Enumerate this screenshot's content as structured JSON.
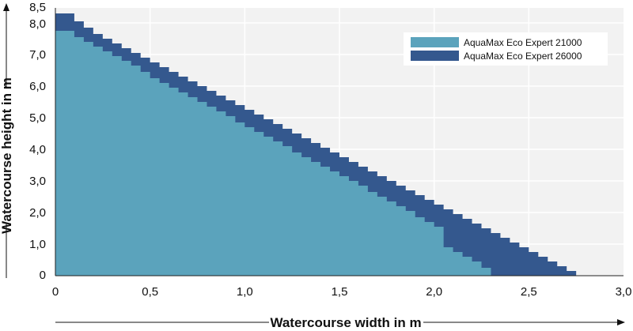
{
  "chart_data": {
    "type": "area",
    "title": "",
    "xlabel": "Watercourse width in m",
    "ylabel": "Watercourse height in m",
    "xlim": [
      0,
      3.0
    ],
    "ylim": [
      0,
      8.5
    ],
    "x_ticks": [
      "0",
      "0,5",
      "1,0",
      "1,5",
      "2,0",
      "2,5",
      "3,0"
    ],
    "y_ticks": [
      "0",
      "1,0",
      "2,0",
      "3,0",
      "4,0",
      "5,0",
      "6,0",
      "7,0",
      "8,0",
      "8,5"
    ],
    "grid": true,
    "legend_position": "top-right",
    "series": [
      {
        "name": "AquaMax Eco Expert 21000",
        "color": "#5ba3bc",
        "step": true,
        "points": [
          [
            0.0,
            7.75
          ],
          [
            0.1,
            7.55
          ],
          [
            0.15,
            7.4
          ],
          [
            0.2,
            7.25
          ],
          [
            0.25,
            7.1
          ],
          [
            0.3,
            6.95
          ],
          [
            0.35,
            6.8
          ],
          [
            0.4,
            6.65
          ],
          [
            0.45,
            6.45
          ],
          [
            0.5,
            6.25
          ],
          [
            0.55,
            6.1
          ],
          [
            0.6,
            5.95
          ],
          [
            0.65,
            5.8
          ],
          [
            0.7,
            5.65
          ],
          [
            0.75,
            5.5
          ],
          [
            0.8,
            5.35
          ],
          [
            0.85,
            5.2
          ],
          [
            0.9,
            5.05
          ],
          [
            0.95,
            4.85
          ],
          [
            1.0,
            4.7
          ],
          [
            1.05,
            4.55
          ],
          [
            1.1,
            4.4
          ],
          [
            1.15,
            4.25
          ],
          [
            1.2,
            4.1
          ],
          [
            1.25,
            3.9
          ],
          [
            1.3,
            3.75
          ],
          [
            1.35,
            3.6
          ],
          [
            1.4,
            3.45
          ],
          [
            1.45,
            3.3
          ],
          [
            1.5,
            3.15
          ],
          [
            1.55,
            3.0
          ],
          [
            1.6,
            2.85
          ],
          [
            1.65,
            2.65
          ],
          [
            1.7,
            2.5
          ],
          [
            1.75,
            2.35
          ],
          [
            1.8,
            2.2
          ],
          [
            1.85,
            2.05
          ],
          [
            1.9,
            1.85
          ],
          [
            1.95,
            1.7
          ],
          [
            2.0,
            1.55
          ],
          [
            2.05,
            0.9
          ],
          [
            2.1,
            0.75
          ],
          [
            2.15,
            0.6
          ],
          [
            2.2,
            0.45
          ],
          [
            2.25,
            0.25
          ],
          [
            2.3,
            0.0
          ]
        ]
      },
      {
        "name": "AquaMax Eco Expert 26000",
        "color": "#34588e",
        "step": true,
        "points": [
          [
            0.0,
            8.3
          ],
          [
            0.1,
            8.05
          ],
          [
            0.15,
            7.85
          ],
          [
            0.2,
            7.65
          ],
          [
            0.25,
            7.5
          ],
          [
            0.3,
            7.35
          ],
          [
            0.35,
            7.2
          ],
          [
            0.4,
            7.05
          ],
          [
            0.45,
            6.9
          ],
          [
            0.5,
            6.75
          ],
          [
            0.55,
            6.6
          ],
          [
            0.6,
            6.45
          ],
          [
            0.65,
            6.3
          ],
          [
            0.7,
            6.15
          ],
          [
            0.75,
            6.0
          ],
          [
            0.8,
            5.85
          ],
          [
            0.85,
            5.7
          ],
          [
            0.9,
            5.55
          ],
          [
            0.95,
            5.4
          ],
          [
            1.0,
            5.25
          ],
          [
            1.05,
            5.1
          ],
          [
            1.1,
            4.95
          ],
          [
            1.15,
            4.8
          ],
          [
            1.2,
            4.65
          ],
          [
            1.25,
            4.5
          ],
          [
            1.3,
            4.35
          ],
          [
            1.35,
            4.2
          ],
          [
            1.4,
            4.05
          ],
          [
            1.45,
            3.9
          ],
          [
            1.5,
            3.75
          ],
          [
            1.55,
            3.6
          ],
          [
            1.6,
            3.45
          ],
          [
            1.65,
            3.3
          ],
          [
            1.7,
            3.15
          ],
          [
            1.75,
            3.0
          ],
          [
            1.8,
            2.85
          ],
          [
            1.85,
            2.7
          ],
          [
            1.9,
            2.55
          ],
          [
            1.95,
            2.4
          ],
          [
            2.0,
            2.25
          ],
          [
            2.05,
            2.1
          ],
          [
            2.1,
            1.95
          ],
          [
            2.15,
            1.8
          ],
          [
            2.2,
            1.65
          ],
          [
            2.25,
            1.5
          ],
          [
            2.3,
            1.35
          ],
          [
            2.35,
            1.2
          ],
          [
            2.4,
            1.05
          ],
          [
            2.45,
            0.9
          ],
          [
            2.5,
            0.75
          ],
          [
            2.55,
            0.6
          ],
          [
            2.6,
            0.45
          ],
          [
            2.65,
            0.3
          ],
          [
            2.7,
            0.15
          ],
          [
            2.75,
            0.0
          ]
        ]
      }
    ]
  }
}
